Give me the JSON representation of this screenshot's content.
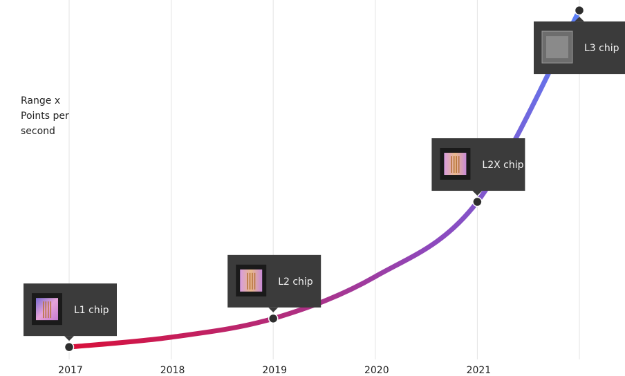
{
  "chart_data": {
    "type": "line",
    "y_label": "Range x Points per second",
    "categories": [
      "2017",
      "2018",
      "2019",
      "2020",
      "2021",
      null
    ],
    "values": [
      3.5,
      6.3,
      11.6,
      23.5,
      44.7,
      99
    ],
    "labels": [
      "L1 chip",
      null,
      "L2 chip",
      null,
      "L2X chip",
      "L3 chip"
    ],
    "gradient": [
      "#d8103a",
      "#8e48bc",
      "#5a7ff8"
    ],
    "ylim": [
      0,
      100
    ],
    "grid": true
  }
}
